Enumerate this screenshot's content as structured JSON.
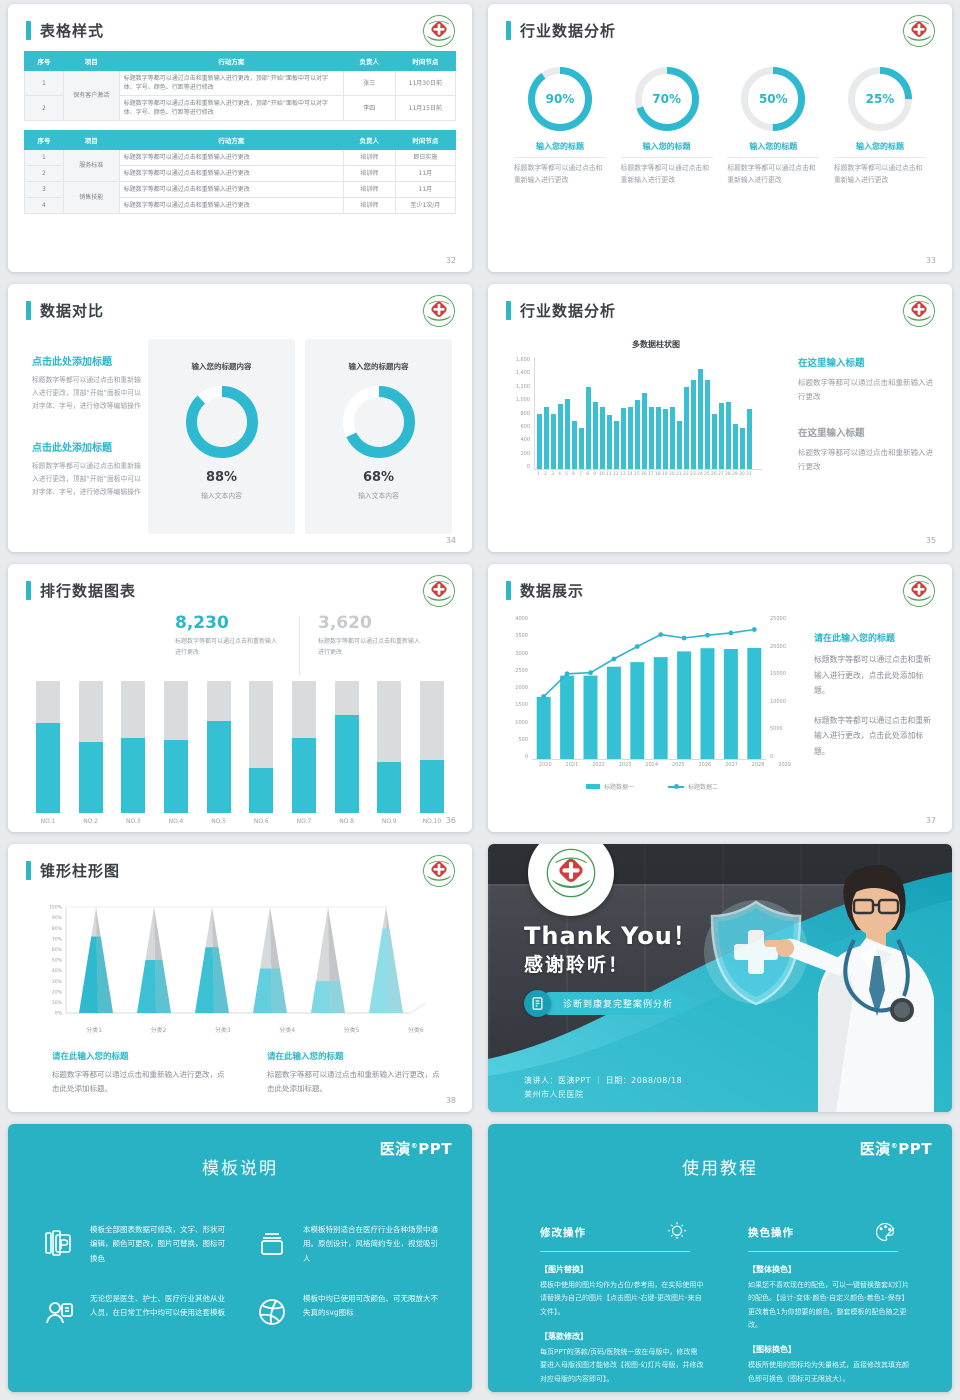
{
  "brand": {
    "logo_cn": "医演",
    "logo_reg": "®",
    "logo_en": "PPT",
    "accent": "#2ab7c9"
  },
  "slide32": {
    "title": "表格样式",
    "page_no": "32",
    "headers": [
      "序号",
      "项目",
      "行动方案",
      "负责人",
      "时间节点"
    ],
    "table1_rows": [
      {
        "no": "1",
        "project": "保有客户激活",
        "project_span": 2,
        "plan": "标题数字等都可以通过点击和重新输入进行更改，顶部“开始”面板中可以对字体、字号、颜色、行距等进行修改",
        "owner": "张三",
        "time": "11月30日前"
      },
      {
        "no": "2",
        "plan": "标题数字等都可以通过点击和重新输入进行更改，顶部“开始”面板中可以对字体、字号、颜色、行距等进行修改",
        "owner": "李四",
        "time": "11月15日前"
      }
    ],
    "table2_rows": [
      {
        "no": "1",
        "project": "服务标准",
        "project_span": 2,
        "plan": "标题数字等都可以通过点击和重新输入进行更改",
        "owner": "培训师",
        "time": "即日实施"
      },
      {
        "no": "2",
        "plan": "标题数字等都可以通过点击和重新输入进行更改",
        "owner": "培训师",
        "time": "11月"
      },
      {
        "no": "3",
        "project": "销售技能",
        "project_span": 2,
        "plan": "标题数字等都可以通过点击和重新输入进行更改",
        "owner": "培训师",
        "time": "11月"
      },
      {
        "no": "4",
        "plan": "标题数字等都可以通过点击和重新输入进行更改",
        "owner": "培训师",
        "time": "至少1次/月"
      }
    ]
  },
  "slide33": {
    "title": "行业数据分析",
    "page_no": "33",
    "item_title": "输入您的标题",
    "item_body": "标题数字等都可以通过点击和重新输入进行更改"
  },
  "slide34": {
    "title": "数据对比",
    "page_no": "34",
    "block_heading": "点击此处添加标题",
    "block_body": "标题数字等都可以通过点击和重新输入进行更改，顶部“开始”面板中可以对字体、字号，进行修改等编辑操作",
    "card_title": "输入您的标题内容",
    "card_caption": "输入文本内容"
  },
  "slide35": {
    "title": "行业数据分析",
    "page_no": "35",
    "chart_title": "多数据柱状图",
    "tb1_heading": "在这里输入标题",
    "tb1_body": "标题数字等都可以通过点击和重新输入进行更改",
    "tb2_heading": "在这里输入标题",
    "tb2_body": "标题数字等都可以通过点击和重新输入进行更改"
  },
  "slide36": {
    "title": "排行数据图表",
    "page_no": "36",
    "stat1_value": "8,230",
    "stat2_value": "3,620",
    "stat_caption": "标题数字等都可以通过点击和重新输入进行更改"
  },
  "slide37": {
    "title": "数据展示",
    "page_no": "37",
    "heading": "请在此输入您的标题",
    "body1": "标题数字等都可以通过点击和重新输入进行更改，点击此处添加标题。",
    "body2": "标题数字等都可以通过点击和重新输入进行更改，点击此处添加标题。"
  },
  "slide38": {
    "title": "锥形柱形图",
    "page_no": "38",
    "tb_heading": "请在此输入您的标题",
    "tb_body": "标题数字等都可以通过点击和重新输入进行更改，点击此处添加标题。"
  },
  "thanks": {
    "title_en": "Thank You！",
    "title_cn": "感谢聆听！",
    "banner": "诊断到康复完整案例分析",
    "footer_line": "演讲人：医演PPT ｜ 日期：2088/08/18",
    "hospital": "莱州市人民医院"
  },
  "tpl": {
    "title": "模板说明",
    "items": [
      {
        "icon": "slides-icon",
        "text": "模板全部图表数据可修改，文字、形状可编辑，颜色可更改，图片可替换，图标可换色"
      },
      {
        "icon": "archive-icon",
        "text": "本模板特别适合在医疗行业各种场景中通用。原创设计，风格简约专业，视觉吸引人"
      },
      {
        "icon": "team-icon",
        "text": "无论您是医生、护士、医疗行业其他从业人员，在日常工作中均可以使用这套模板"
      },
      {
        "icon": "dribbble-icon",
        "text": "模板中均已使用可改颜色、可无限放大不失真的svg图标"
      }
    ]
  },
  "tut": {
    "title": "使用教程",
    "col1": {
      "heading": "修改操作",
      "icon": "bulb-icon",
      "sections": [
        {
          "label": "【图片替换】",
          "body": "模板中使用的图片均作为占位/参考用，在实际使用中请替换为自己的图片【点击图片-右键-更改图片-来自文件】。"
        },
        {
          "label": "【落款修改】",
          "body": "每页PPT的落款/页码/医院统一放在母版中，修改需要进入母版视图才能修改【视图-幻灯片母版，并修改对应母版的内容即可】。"
        }
      ]
    },
    "col2": {
      "heading": "换色操作",
      "icon": "palette-icon",
      "sections": [
        {
          "label": "【整体换色】",
          "body": "如果您不喜欢现在的配色，可以一键替换整套幻灯片的配色。【设计-变体-颜色-自定义颜色-着色1-保存】更改着色1为你想要的颜色，整套模板的配色随之更改。"
        },
        {
          "label": "【图标换色】",
          "body": "模板所使用的图标均为矢量格式，直接修改其填充颜色即可换色（图标可无限放大）。"
        }
      ]
    }
  },
  "chart_data": [
    {
      "id": "donuts-33",
      "type": "pie",
      "slide": 33,
      "labels": [
        "输入您的标题",
        "输入您的标题",
        "输入您的标题",
        "输入您的标题"
      ],
      "values": [
        90,
        70,
        50,
        25
      ],
      "unit": "%",
      "accent": "#2eb9d0",
      "track": "#e9eaec"
    },
    {
      "id": "donuts-34",
      "type": "pie",
      "slide": 34,
      "labels": [
        "输入您的标题内容",
        "输入您的标题内容"
      ],
      "values": [
        88,
        68
      ],
      "unit": "%",
      "accent": "#2eb9d0",
      "track": "#ffffff"
    },
    {
      "id": "bars-35",
      "type": "bar",
      "slide": 35,
      "title": "多数据柱状图",
      "categories": [
        "1",
        "2",
        "3",
        "4",
        "5",
        "6",
        "7",
        "8",
        "9",
        "10",
        "11",
        "12",
        "13",
        "14",
        "15",
        "16",
        "17",
        "18",
        "19",
        "20",
        "21",
        "22",
        "23",
        "24",
        "25",
        "26",
        "27",
        "28",
        "29",
        "30",
        "31"
      ],
      "values": [
        800,
        900,
        800,
        950,
        1020,
        700,
        600,
        1200,
        980,
        900,
        780,
        700,
        890,
        900,
        1000,
        1100,
        900,
        900,
        880,
        900,
        700,
        1200,
        1300,
        1450,
        1300,
        800,
        960,
        970,
        660,
        590,
        870
      ],
      "ylim": [
        0,
        1600
      ],
      "yticks": [
        0,
        200,
        400,
        600,
        800,
        1000,
        1200,
        1400,
        1600
      ],
      "bar_color": "#3bbfd2"
    },
    {
      "id": "rank-36",
      "type": "bar",
      "slide": 36,
      "categories": [
        "NO.1",
        "NO.2",
        "NO.3",
        "NO.4",
        "NO.5",
        "NO.6",
        "NO.7",
        "NO.8",
        "NO.9",
        "NO.10"
      ],
      "values": [
        68,
        54,
        57,
        55,
        70,
        34,
        57,
        74,
        39,
        40
      ],
      "ylim": [
        0,
        100
      ],
      "unit": "%",
      "bar_color": "#35c1d4",
      "track_color": "#d9dbdd"
    },
    {
      "id": "combo-37",
      "type": "bar+line",
      "slide": 37,
      "categories": [
        "2020",
        "2021",
        "2022",
        "2023",
        "2024",
        "2025",
        "2026",
        "2027",
        "2028",
        "2029"
      ],
      "series": [
        {
          "name": "标题数据一",
          "type": "bar",
          "axis": "left",
          "color": "#35c1d4",
          "values": [
            1750,
            2350,
            2350,
            2600,
            2730,
            2870,
            3030,
            3120,
            3100,
            3130
          ]
        },
        {
          "name": "标题数据二",
          "type": "line",
          "axis": "right",
          "color": "#2fb3cf",
          "values": [
            11000,
            15000,
            15200,
            17600,
            19800,
            21900,
            21300,
            21800,
            22200,
            22800
          ]
        }
      ],
      "left_ylim": [
        0,
        4000
      ],
      "left_yticks": [
        0,
        500,
        1000,
        1500,
        2000,
        2500,
        3000,
        3500,
        4000
      ],
      "right_ylim": [
        0,
        25000
      ],
      "right_yticks": [
        0,
        5000,
        10000,
        15000,
        20000,
        25000
      ],
      "legend_position": "bottom"
    },
    {
      "id": "cones-38",
      "type": "bar",
      "slide": 38,
      "categories": [
        "分类1",
        "分类2",
        "分类3",
        "分类4",
        "分类5",
        "分类6"
      ],
      "values": [
        72,
        50,
        62,
        42,
        30,
        80
      ],
      "ylim": [
        0,
        100
      ],
      "yticks_percent": [
        "0%",
        "10%",
        "20%",
        "30%",
        "40%",
        "50%",
        "60%",
        "70%",
        "80%",
        "90%",
        "100%"
      ],
      "cone_colors": [
        "#2fb9ce",
        "#3cc0d3",
        "#3cc0d3",
        "#63cedf",
        "#7ed7e4",
        "#8edee9"
      ],
      "gray": "#cfd1d3"
    }
  ]
}
